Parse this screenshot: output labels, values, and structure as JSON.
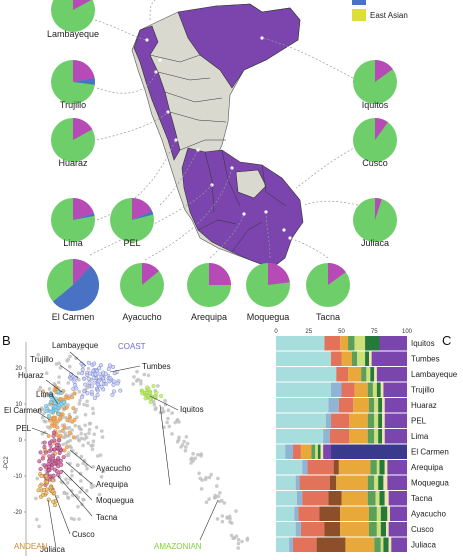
{
  "legend": {
    "items": [
      {
        "label": "",
        "color": "#4a72c4"
      },
      {
        "label": "East Asian",
        "color": "#dede3a"
      }
    ]
  },
  "colors": {
    "native": "#6ecf6a",
    "european": "#b84ab8",
    "african": "#4a72c4",
    "map_highlight": "#7b45ad",
    "map_other": "#d9d9d0",
    "pca_andean": "#d28b2a",
    "pca_amazonian": "#7fcf3f",
    "pca_coast": "#6a6acf"
  },
  "pies": [
    {
      "label": "Lambayeque",
      "european": 0.17,
      "african": 0.0
    },
    {
      "label": "Trujillo",
      "european": 0.22,
      "african": 0.05
    },
    {
      "label": "Huaraz",
      "european": 0.17,
      "african": 0.0
    },
    {
      "label": "Lima",
      "european": 0.2,
      "african": 0.02
    },
    {
      "label": "PEL",
      "european": 0.18,
      "african": 0.03
    },
    {
      "label": "El Carmen",
      "european": 0.12,
      "african": 0.52
    },
    {
      "label": "Ayacucho",
      "european": 0.14,
      "african": 0.0
    },
    {
      "label": "Arequipa",
      "european": 0.25,
      "african": 0.0
    },
    {
      "label": "Moquegua",
      "european": 0.23,
      "african": 0.0
    },
    {
      "label": "Tacna",
      "european": 0.15,
      "african": 0.0
    },
    {
      "label": "Iquitos",
      "european": 0.15,
      "african": 0.0
    },
    {
      "label": "Cusco",
      "european": 0.1,
      "african": 0.0
    },
    {
      "label": "Juliaca",
      "european": 0.05,
      "african": 0.0
    }
  ],
  "panel_b": {
    "label": "B",
    "ylabel": "-PC2",
    "ytick_labels": [
      "20",
      "10",
      "0",
      "-10",
      "-20"
    ],
    "region_labels": {
      "coast": "COAST",
      "andean": "ANDEAN",
      "amazonian": "AMAZONIAN"
    },
    "pop_labels": [
      "Lambayeque",
      "Trujillo",
      "Huaraz",
      "Lima",
      "El Carmen",
      "PEL",
      "Ayacucho",
      "Arequipa",
      "Moquegua",
      "Tacna",
      "Cusco",
      "Juliaca",
      "Tumbes",
      "Iquitos"
    ]
  },
  "panel_c": {
    "label": "C",
    "ticks": [
      "0",
      "25",
      "50",
      "75",
      "100"
    ],
    "component_colors": [
      "#a7dedd",
      "#8fb4d6",
      "#e3725a",
      "#8d4f2a",
      "#e8a83a",
      "#5aa05a",
      "#cfe07a",
      "#247a3a",
      "#f3e5b0",
      "#7a45ad",
      "#3a3a8c"
    ],
    "rows": [
      {
        "label": "Iquitos",
        "values": [
          37,
          0,
          12,
          0,
          6,
          5,
          8,
          11,
          0,
          21,
          0
        ]
      },
      {
        "label": "Tumbes",
        "values": [
          42,
          0,
          8,
          0,
          8,
          4,
          6,
          3,
          2,
          27,
          0
        ]
      },
      {
        "label": "Lambayeque",
        "values": [
          46,
          0,
          9,
          0,
          10,
          4,
          3,
          3,
          2,
          23,
          0
        ]
      },
      {
        "label": "Trujillo",
        "values": [
          42,
          8,
          10,
          0,
          10,
          4,
          3,
          3,
          2,
          18,
          0
        ]
      },
      {
        "label": "Huaraz",
        "values": [
          40,
          8,
          11,
          0,
          12,
          4,
          3,
          3,
          2,
          17,
          0
        ]
      },
      {
        "label": "PEL",
        "values": [
          38,
          4,
          14,
          0,
          14,
          5,
          3,
          3,
          2,
          17,
          0
        ]
      },
      {
        "label": "Lima",
        "values": [
          36,
          5,
          15,
          0,
          14,
          5,
          3,
          3,
          2,
          17,
          0
        ]
      },
      {
        "label": "El Carmen",
        "values": [
          7,
          6,
          6,
          0,
          8,
          3,
          2,
          2,
          2,
          6,
          58
        ]
      },
      {
        "label": "Arequipa",
        "values": [
          20,
          4,
          20,
          4,
          24,
          5,
          2,
          4,
          2,
          15,
          0
        ]
      },
      {
        "label": "Moquegua",
        "values": [
          15,
          3,
          23,
          5,
          24,
          5,
          3,
          4,
          3,
          15,
          0
        ]
      },
      {
        "label": "Tacna",
        "values": [
          16,
          4,
          20,
          10,
          20,
          6,
          3,
          4,
          3,
          14,
          0
        ]
      },
      {
        "label": "Ayacucho",
        "values": [
          14,
          3,
          16,
          16,
          22,
          6,
          3,
          5,
          2,
          13,
          0
        ]
      },
      {
        "label": "Cusco",
        "values": [
          15,
          4,
          18,
          12,
          22,
          6,
          3,
          4,
          2,
          14,
          0
        ]
      },
      {
        "label": "Juliaca",
        "values": [
          10,
          3,
          18,
          22,
          22,
          5,
          2,
          4,
          2,
          12,
          0
        ]
      }
    ]
  }
}
